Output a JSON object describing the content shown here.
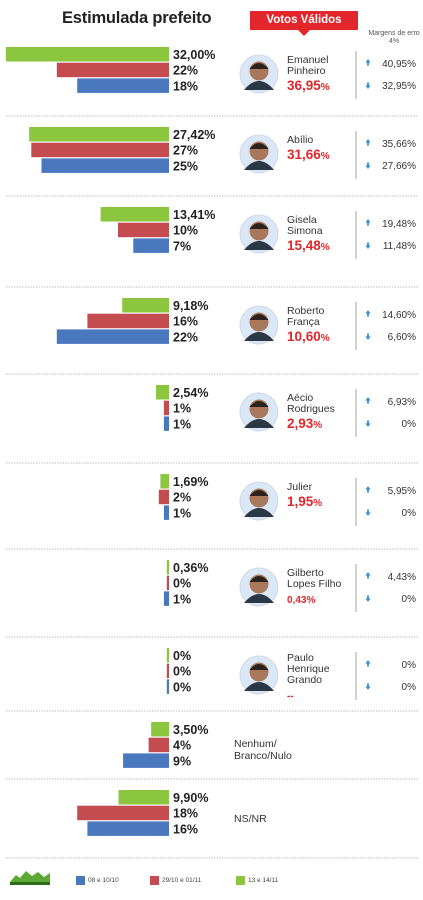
{
  "header": {
    "title": "Estimulada prefeito",
    "votos_validos_label": "Votos Válidos",
    "margin_note": "Margens de erro 4%"
  },
  "colors": {
    "s1": "#4a78bf",
    "s2": "#c44b50",
    "s3": "#8cc63f",
    "red": "#e2262b",
    "arrow": "#3a8fd6"
  },
  "chart_data": {
    "type": "bar",
    "orientation": "horizontal",
    "categories": [
      "Emanuel Pinheiro",
      "Abílio",
      "Gisela Simona",
      "Roberto França",
      "Aécio Rodrigues",
      "Julier",
      "Gilberto Lopes Filho",
      "Paulo Henrique Grando",
      "Nenhum/ Branco/Nulo",
      "NS/NR"
    ],
    "series": [
      {
        "name": "13 e 14/11",
        "values": [
          32.0,
          27.42,
          13.41,
          9.18,
          2.54,
          1.69,
          0.36,
          0,
          3.5,
          9.9
        ],
        "labels": [
          "32,00%",
          "27,42%",
          "13,41%",
          "9,18%",
          "2,54%",
          "1,69%",
          "0,36%",
          "0%",
          "3,50%",
          "9,90%"
        ]
      },
      {
        "name": "29/10 e 01/11",
        "values": [
          22,
          27,
          10,
          16,
          1,
          2,
          0,
          0,
          4,
          18
        ],
        "labels": [
          "22%",
          "27%",
          "10%",
          "16%",
          "1%",
          "2%",
          "0%",
          "0%",
          "4%",
          "18%"
        ]
      },
      {
        "name": "08 e 10/10",
        "values": [
          18,
          25,
          7,
          22,
          1,
          1,
          1,
          0,
          9,
          16
        ],
        "labels": [
          "18%",
          "25%",
          "7%",
          "22%",
          "1%",
          "1%",
          "1%",
          "0%",
          "9%",
          "16%"
        ]
      }
    ],
    "votos_validos": [
      "36,95",
      "31,66",
      "15,48",
      "10,60",
      "2,93",
      "1,95",
      "0,43%",
      "--",
      null,
      null
    ],
    "margens": [
      {
        "up": "40,95%",
        "down": "32,95%"
      },
      {
        "up": "35,66%",
        "down": "27,66%"
      },
      {
        "up": "19,48%",
        "down": "11,48%"
      },
      {
        "up": "14,60%",
        "down": "6,60%"
      },
      {
        "up": "6,93%",
        "down": "0%"
      },
      {
        "up": "5,95%",
        "down": "0%"
      },
      {
        "up": "4,43%",
        "down": "0%"
      },
      {
        "up": "0%",
        "down": "0%"
      },
      null,
      null
    ]
  },
  "legend": [
    {
      "label": "08 e 10/10",
      "color": "#4a78bf"
    },
    {
      "label": "29/10 e 01/11",
      "color": "#c44b50"
    },
    {
      "label": "13 e 14/11",
      "color": "#8cc63f"
    }
  ]
}
